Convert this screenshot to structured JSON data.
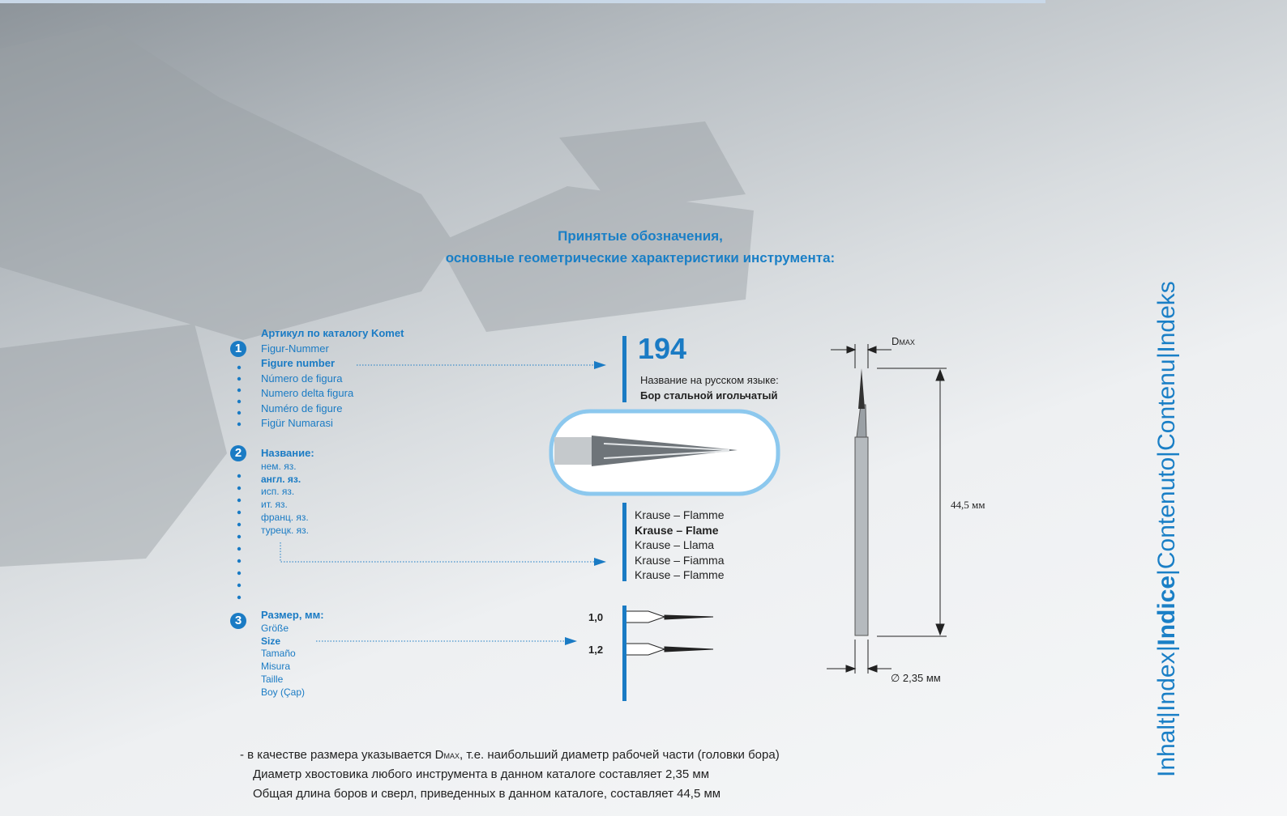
{
  "title": [
    "Принятые обозначения,",
    "основные геометрические характеристики инструмента:"
  ],
  "sections": [
    {
      "number": "1",
      "heading": "Артикул по каталогу Komet",
      "items": [
        "Figur-Nummer",
        "Figure number",
        "Número de figura",
        "Numero delta figura",
        "Numéro de figure",
        "Figür Numarasi"
      ]
    },
    {
      "number": "2",
      "heading": "Название:",
      "items": [
        "нем. яз.",
        "англ. яз.",
        "исп. яз.",
        "ит. яз.",
        "франц. яз.",
        "турецк. яз."
      ]
    },
    {
      "number": "3",
      "heading": "Размер, мм:",
      "items": [
        "Größe",
        "Size",
        "Tamaño",
        "Misura",
        "Taille",
        "Boy (Çap)"
      ]
    }
  ],
  "product": {
    "figure": "194",
    "russian_label": "Название на русском языке:",
    "russian_name": "Бор стальной игольчатый",
    "names": [
      "Krause – Flamme",
      "Krause – Flame",
      "Krause – Llama",
      "Krause – Fiamma",
      "Krause – Flamme"
    ],
    "sizes": [
      "1,0",
      "1,2"
    ]
  },
  "drawing": {
    "dmax": "D",
    "dmax_sub": "MAX",
    "length": "44,5 мм",
    "diameter": "∅ 2,35 мм"
  },
  "notes": {
    "first_before": "- в качестве размера указывается D",
    "first_sub": "MAX",
    "first_after": ", т.е. наибольший диаметр рабочей части (головки бора)",
    "lines": [
      "Диаметр хвостовика любого инструмента в данном каталоге составляет 2,35 мм",
      "Общая длина боров и сверл, приведенных в данном каталоге, составляет 44,5 мм"
    ]
  },
  "nav": {
    "items": [
      "Inhalt",
      "Index",
      "Indice",
      "Contenuto",
      "Contenu",
      "Indeks"
    ],
    "separator": "|"
  }
}
